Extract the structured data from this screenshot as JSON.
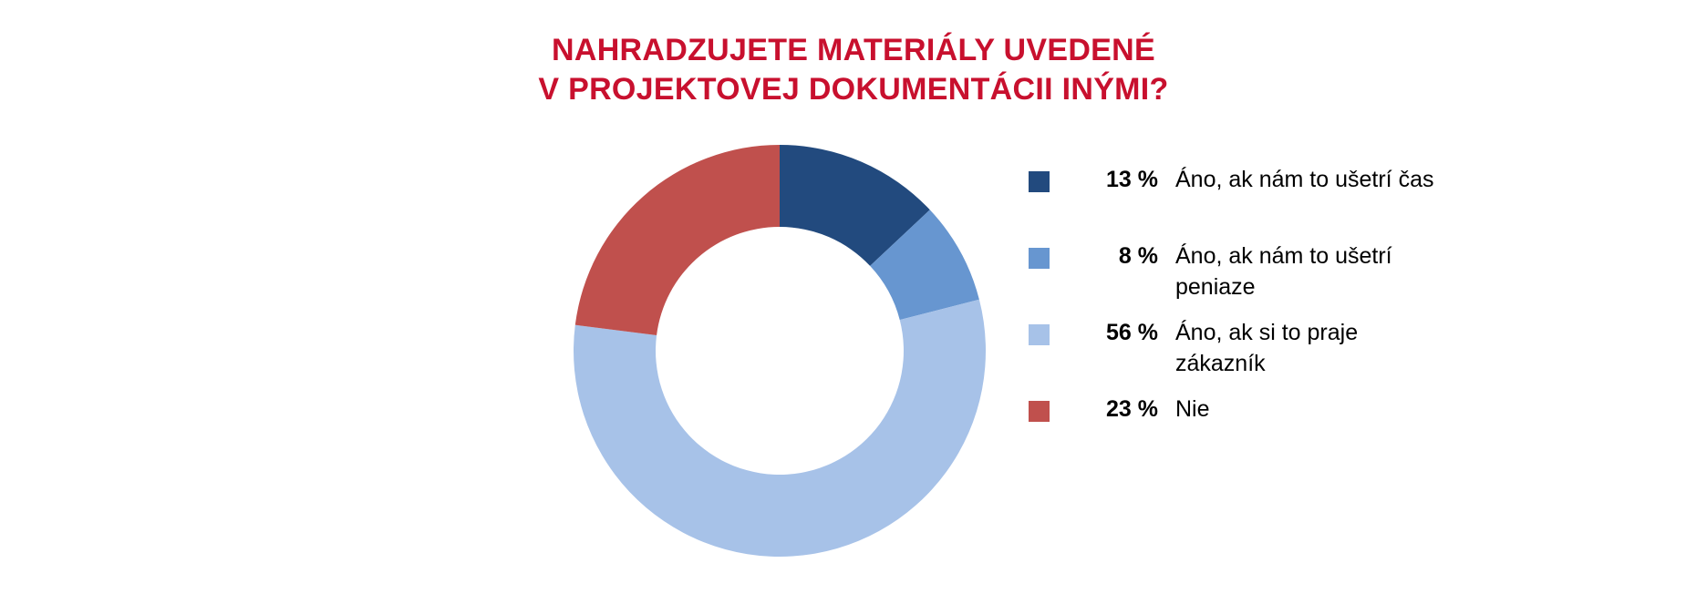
{
  "chart_data": {
    "type": "pie",
    "title": [
      "NAHRADZUJETE MATERIÁLY UVEDENÉ",
      "V PROJEKTOVEJ DOKUMENTÁCII INÝMI?"
    ],
    "donut": true,
    "legend_position": "right",
    "slices": [
      {
        "label": "Áno, ak nám to ušetrí čas",
        "value": 13,
        "value_label": "13 %",
        "color": "#224a7e"
      },
      {
        "label": "Áno, ak nám to ušetrí peniaze",
        "value": 8,
        "value_label": "8 %",
        "color": "#6796d0"
      },
      {
        "label": "Áno, ak si to praje zákazník",
        "value": 56,
        "value_label": "56 %",
        "color": "#a7c2e8"
      },
      {
        "label": "Nie",
        "value": 23,
        "value_label": "23 %",
        "color": "#c0504d"
      }
    ]
  }
}
